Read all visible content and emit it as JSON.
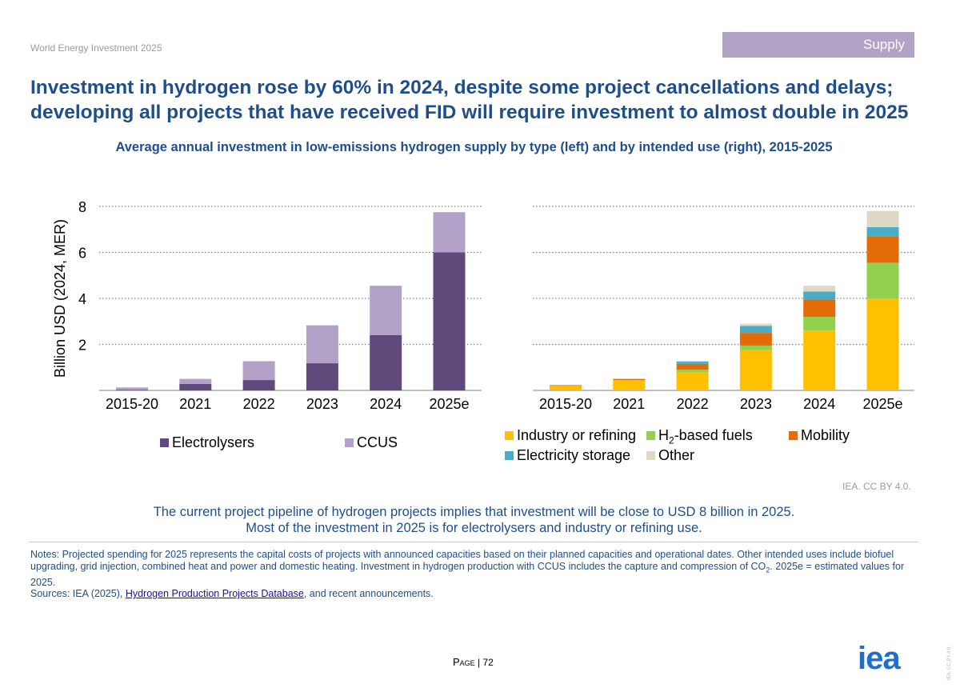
{
  "header": {
    "doc_label": "World Energy Investment 2025",
    "section": "Supply",
    "section_color": "#b3a2c7",
    "headline": "Investment in hydrogen rose by 60% in 2024, despite some project cancellations and delays; developing all projects that have received FID will require investment to almost double in 2025",
    "chart_title": "Average annual investment in low-emissions hydrogen supply by type (left) and by intended use (right), 2015-2025"
  },
  "chart_data": [
    {
      "type": "bar",
      "stacked": true,
      "title": "",
      "ylabel": "Billion USD (2024, MER)",
      "xlabel": "",
      "ylim": [
        0,
        8
      ],
      "yticks": [
        2,
        4,
        6,
        8
      ],
      "grid": true,
      "legend_position": "bottom",
      "categories": [
        "2015-20",
        "2021",
        "2022",
        "2023",
        "2024",
        "2025e"
      ],
      "series": [
        {
          "name": "Electrolysers",
          "color": "#604a7b",
          "values": [
            0.03,
            0.28,
            0.45,
            1.18,
            2.4,
            6.0
          ]
        },
        {
          "name": "CCUS",
          "color": "#b3a2c7",
          "values": [
            0.1,
            0.22,
            0.82,
            1.65,
            2.15,
            1.75
          ]
        }
      ]
    },
    {
      "type": "bar",
      "stacked": true,
      "title": "",
      "ylabel": "",
      "xlabel": "",
      "ylim": [
        0,
        8
      ],
      "yticks": [
        2,
        4,
        6,
        8
      ],
      "grid": true,
      "legend_position": "bottom",
      "categories": [
        "2015-20",
        "2021",
        "2022",
        "2023",
        "2024",
        "2025e"
      ],
      "series": [
        {
          "name": "Industry or refining",
          "color": "#ffc000",
          "values": [
            0.2,
            0.45,
            0.8,
            1.75,
            2.6,
            4.0
          ]
        },
        {
          "name": "H2-based fuels",
          "color": "#92d050",
          "values": [
            0.0,
            0.0,
            0.1,
            0.2,
            0.6,
            1.55
          ]
        },
        {
          "name": "Mobility",
          "color": "#e36c09",
          "values": [
            0.03,
            0.05,
            0.25,
            0.55,
            0.75,
            1.15
          ]
        },
        {
          "name": "Electricity storage",
          "color": "#4bacc6",
          "values": [
            0.0,
            0.0,
            0.1,
            0.3,
            0.35,
            0.4
          ]
        },
        {
          "name": "Other",
          "color": "#ddd9c4",
          "values": [
            0.0,
            0.0,
            0.03,
            0.1,
            0.25,
            0.7
          ]
        }
      ]
    }
  ],
  "footer": {
    "copyright": "IEA. CC BY 4.0.",
    "takeaway_1": "The current project pipeline of hydrogen projects implies that investment will be close to USD 8 billion in 2025.",
    "takeaway_2": "Most of the investment in 2025 is for electrolysers and industry or refining use.",
    "notes_a": "Notes: Projected spending for 2025 represents the capital costs of projects with announced capacities based on their planned capacities and operational dates. Other intended uses include biofuel upgrading, grid injection, combined heat and power and domestic heating. Investment in hydrogen production with CCUS includes the capture and compression of CO",
    "notes_sub": "2",
    "notes_b": ". 2025e = estimated values for 2025.",
    "sources_prefix": "Sources: IEA (2025), ",
    "sources_link": "Hydrogen Production Projects Database",
    "sources_suffix": ", and recent announcements.",
    "page_word": "Page",
    "page_sep": " | ",
    "page_number": "72",
    "logo_text": "iea",
    "side_mark": "IEA. CC BY 4.0."
  }
}
